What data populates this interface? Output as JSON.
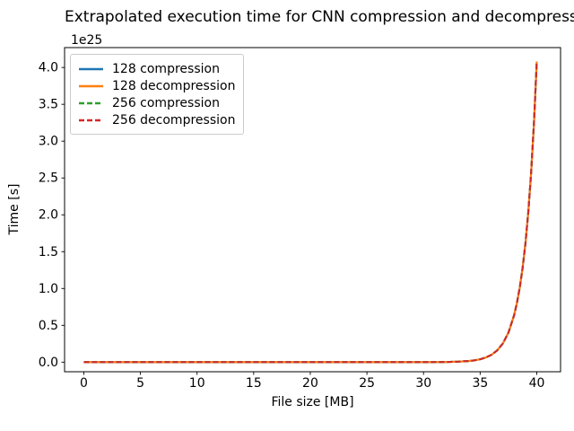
{
  "title": "Extrapolated execution time for CNN compression and decompression",
  "axes": {
    "xlabel": "File size [MB]",
    "ylabel": "Time [s]",
    "offset_text": "1e25",
    "x_ticks": [
      0,
      5,
      10,
      15,
      20,
      25,
      30,
      35,
      40
    ],
    "x_tick_labels": [
      "0",
      "5",
      "10",
      "15",
      "20",
      "25",
      "30",
      "35",
      "40"
    ],
    "y_ticks": [
      0,
      0.5,
      1.0,
      1.5,
      2.0,
      2.5,
      3.0,
      3.5,
      4.0
    ],
    "y_tick_labels": [
      "0.0",
      "0.5",
      "1.0",
      "1.5",
      "2.0",
      "2.5",
      "3.0",
      "3.5",
      "4.0"
    ]
  },
  "legend": {
    "position": "upper left",
    "entries": [
      {
        "label": "128 compression",
        "color": "#1f77b4",
        "linestyle": "solid"
      },
      {
        "label": "128 decompression",
        "color": "#ff7f0e",
        "linestyle": "solid"
      },
      {
        "label": "256 compression",
        "color": "#2ca02c",
        "linestyle": "dashed"
      },
      {
        "label": "256 decompression",
        "color": "#d62728",
        "linestyle": "dashed"
      }
    ]
  },
  "chart_data": {
    "type": "line",
    "title": "Extrapolated execution time for CNN compression and decompression",
    "xlabel": "File size [MB]",
    "ylabel": "Time [s]",
    "y_unit": "values in units of 1e25 seconds",
    "grid": false,
    "legend_position": "upper left",
    "xlim": [
      -1.7,
      42.1
    ],
    "ylim_1e25": [
      -0.13,
      4.27
    ],
    "x": [
      0,
      5,
      10,
      15,
      20,
      25,
      30,
      31,
      32,
      33,
      34,
      34.5,
      35,
      35.5,
      36,
      36.5,
      37,
      37.5,
      38,
      38.25,
      38.5,
      38.75,
      39,
      39.25,
      39.5,
      39.75,
      40
    ],
    "series": [
      {
        "name": "128 compression",
        "color": "#1f77b4",
        "linestyle": "solid",
        "y_1e25": [
          0,
          0,
          0,
          0,
          0,
          3.6e-06,
          0.00038,
          0.00096,
          0.0024,
          0.0062,
          0.0156,
          0.0248,
          0.0394,
          0.0627,
          0.0997,
          0.1586,
          0.2522,
          0.401,
          0.638,
          0.804,
          1.014,
          1.279,
          1.613,
          2.034,
          2.565,
          3.235,
          4.08
        ]
      },
      {
        "name": "128 decompression",
        "color": "#ff7f0e",
        "linestyle": "solid",
        "y_1e25": [
          0,
          0,
          0,
          0,
          0,
          3.6e-06,
          0.00038,
          0.00096,
          0.0024,
          0.0062,
          0.0156,
          0.0248,
          0.0394,
          0.0627,
          0.0997,
          0.1586,
          0.2522,
          0.401,
          0.638,
          0.804,
          1.014,
          1.279,
          1.613,
          2.034,
          2.565,
          3.235,
          4.08
        ]
      },
      {
        "name": "256 compression",
        "color": "#2ca02c",
        "linestyle": "dashed",
        "y_1e25": [
          0,
          0,
          0,
          0,
          0,
          3.6e-06,
          0.00038,
          0.00096,
          0.0024,
          0.0062,
          0.0156,
          0.0248,
          0.0394,
          0.0627,
          0.0997,
          0.1586,
          0.2522,
          0.401,
          0.638,
          0.804,
          1.014,
          1.279,
          1.613,
          2.034,
          2.565,
          3.235,
          4.08
        ]
      },
      {
        "name": "256 decompression",
        "color": "#d62728",
        "linestyle": "dashed",
        "y_1e25": [
          0,
          0,
          0,
          0,
          0,
          3.6e-06,
          0.00038,
          0.00096,
          0.0024,
          0.0062,
          0.0156,
          0.0248,
          0.0394,
          0.0627,
          0.0997,
          0.1586,
          0.2522,
          0.401,
          0.638,
          0.804,
          1.014,
          1.279,
          1.613,
          2.034,
          2.565,
          3.235,
          4.08
        ]
      }
    ]
  }
}
